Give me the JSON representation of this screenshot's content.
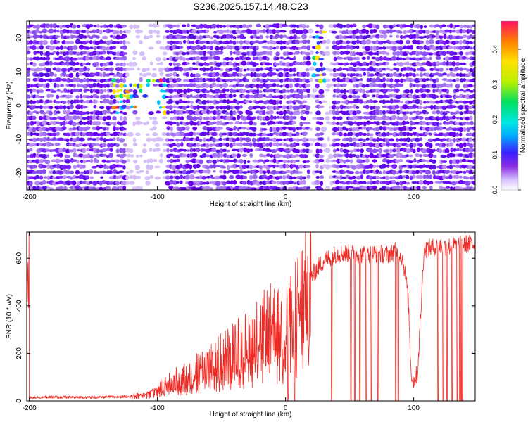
{
  "title": "S236.2025.157.14.48.C23",
  "colors": {
    "snr_line": "#ee2a24",
    "colormap": [
      "#ffffff",
      "#d7c2ff",
      "#9b4dff",
      "#6a00f0",
      "#2f2fff",
      "#00bfff",
      "#00e060",
      "#c8f000",
      "#ffe000",
      "#ff7a00",
      "#ff1060"
    ]
  },
  "chart_data": [
    {
      "type": "heatmap",
      "xlabel": "Height of straight line (km)",
      "ylabel": "Frequency (Hz)",
      "xlim": [
        -202,
        148
      ],
      "ylim": [
        -25,
        25
      ],
      "xticks": [
        -200,
        -100,
        0,
        100
      ],
      "yticks": [
        -20,
        -10,
        0,
        10,
        20
      ],
      "colorbar": {
        "label": "Normalized spectral amplitude",
        "range": [
          0,
          0.48
        ],
        "ticks": [
          "0.0",
          "0.1",
          "0.2",
          "0.3",
          "0.4"
        ]
      },
      "features": [
        {
          "x_range": [
            -135,
            -92
          ],
          "y_range": [
            -3,
            8
          ],
          "peak_amplitude": 0.45
        },
        {
          "x_range": [
            22,
            32
          ],
          "y_range": [
            5,
            25
          ],
          "peak_amplitude": 0.4
        }
      ]
    },
    {
      "type": "line",
      "xlabel": "Height of straight line (km)",
      "ylabel": "SNR (10 * v/v)",
      "xlim": [
        -202,
        148
      ],
      "ylim": [
        0,
        710
      ],
      "xticks": [
        -200,
        -100,
        0,
        100
      ],
      "yticks": [
        0,
        200,
        400,
        600
      ],
      "series": [
        {
          "x": [
            -200,
            -175,
            -150,
            -125,
            -110,
            -100,
            -90,
            -80,
            -70,
            -60,
            -50,
            -40,
            -30,
            -20,
            -10,
            -2,
            2,
            6,
            10,
            15,
            20,
            25,
            30,
            40,
            50,
            60,
            70,
            80,
            85,
            90,
            92,
            95,
            96,
            97,
            98,
            100,
            103,
            106,
            108,
            110,
            120,
            130,
            140,
            148
          ],
          "y": [
            15,
            15,
            15,
            18,
            30,
            55,
            80,
            105,
            130,
            160,
            190,
            220,
            250,
            290,
            330,
            300,
            340,
            370,
            420,
            470,
            520,
            560,
            590,
            620,
            620,
            615,
            620,
            615,
            630,
            620,
            580,
            470,
            400,
            250,
            120,
            80,
            120,
            420,
            640,
            640,
            650,
            650,
            660,
            660
          ],
          "dropouts": [
            2,
            7,
            36,
            51,
            54,
            58,
            63,
            67,
            72,
            86,
            88,
            119,
            123,
            126,
            130,
            134,
            136,
            137,
            138
          ]
        }
      ]
    }
  ]
}
